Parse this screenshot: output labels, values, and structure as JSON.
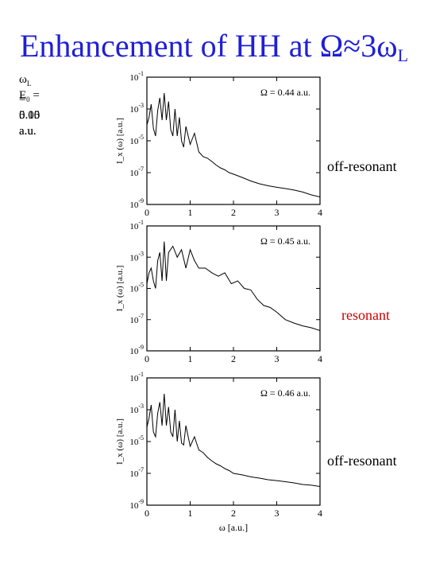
{
  "title": {
    "text": "Enhancement of HH at Ω≈3ω",
    "subscript": "L"
  },
  "params": [
    {
      "symbol": "ω",
      "sub": "L",
      "text": " = 0.15 a.u."
    },
    {
      "symbol": "E",
      "sub": "0",
      "text": " = 5.00 a.u."
    }
  ],
  "labels": {
    "top": "off-resonant",
    "middle": "resonant",
    "bottom": "off-resonant"
  },
  "colors": {
    "title": "#1f1fd6",
    "resonant": "#cc0000",
    "line": "#000000"
  },
  "chart_data": [
    {
      "type": "line",
      "annotation": "Ω = 0.44 a.u.",
      "xlabel": "",
      "ylabel": "I_x (ω) [a.u.]",
      "xlim": [
        0,
        4
      ],
      "ylim": [
        1e-09,
        0.1
      ],
      "yscale": "log",
      "xticks": [
        "0",
        "1",
        "2",
        "3",
        "4"
      ],
      "yticks": [
        "10^-9",
        "10^-7",
        "10^-5",
        "10^-3",
        "10^-1"
      ],
      "series": [
        {
          "name": "",
          "x": [
            0.0,
            0.05,
            0.1,
            0.15,
            0.2,
            0.25,
            0.3,
            0.35,
            0.4,
            0.45,
            0.5,
            0.55,
            0.6,
            0.65,
            0.7,
            0.75,
            0.8,
            0.85,
            0.9,
            1.0,
            1.1,
            1.2,
            1.3,
            1.4,
            1.5,
            1.6,
            1.7,
            1.8,
            1.9,
            2.0,
            2.2,
            2.4,
            2.6,
            2.8,
            3.0,
            3.2,
            3.4,
            3.6,
            3.8,
            4.0
          ],
          "y": [
            0.0001,
            0.0003,
            0.002,
            6e-05,
            2e-05,
            0.0008,
            0.005,
            0.0002,
            0.01,
            0.0002,
            0.003,
            5e-05,
            2e-05,
            0.001,
            2e-05,
            0.0003,
            1e-05,
            4e-06,
            8e-05,
            6e-06,
            3e-05,
            2e-06,
            1e-06,
            8e-07,
            5e-07,
            3e-07,
            2e-07,
            1.5e-07,
            1e-07,
            8e-08,
            5e-08,
            3e-08,
            2e-08,
            1.5e-08,
            1.2e-08,
            1e-08,
            8e-09,
            6e-09,
            4e-09,
            3e-09
          ]
        }
      ]
    },
    {
      "type": "line",
      "annotation": "Ω = 0.45 a.u.",
      "xlabel": "",
      "ylabel": "I_x (ω) [a.u.]",
      "xlim": [
        0,
        4
      ],
      "ylim": [
        1e-09,
        0.1
      ],
      "yscale": "log",
      "xticks": [
        "0",
        "1",
        "2",
        "3",
        "4"
      ],
      "yticks": [
        "10^-9",
        "10^-7",
        "10^-5",
        "10^-3",
        "10^-1"
      ],
      "series": [
        {
          "name": "",
          "x": [
            0.0,
            0.05,
            0.1,
            0.15,
            0.2,
            0.25,
            0.3,
            0.35,
            0.4,
            0.45,
            0.5,
            0.6,
            0.7,
            0.8,
            0.9,
            1.0,
            1.1,
            1.2,
            1.35,
            1.5,
            1.65,
            1.8,
            1.95,
            2.1,
            2.25,
            2.4,
            2.55,
            2.7,
            2.85,
            3.0,
            3.2,
            3.4,
            3.6,
            3.8,
            4.0
          ],
          "y": [
            2e-05,
            0.0001,
            0.0002,
            3e-05,
            1e-05,
            0.0006,
            0.002,
            3e-05,
            0.01,
            3e-05,
            0.002,
            0.005,
            0.001,
            0.003,
            0.0002,
            0.003,
            0.0006,
            0.0002,
            0.0002,
            0.0001,
            6e-05,
            0.0001,
            2e-05,
            3e-05,
            1e-05,
            8e-06,
            2e-06,
            8e-07,
            6e-07,
            3e-07,
            1e-07,
            6e-08,
            4e-08,
            3e-08,
            2e-08
          ]
        }
      ]
    },
    {
      "type": "line",
      "annotation": "Ω = 0.46 a.u.",
      "xlabel": "ω [a.u.]",
      "ylabel": "I_x (ω) [a.u.]",
      "xlim": [
        0,
        4
      ],
      "ylim": [
        1e-09,
        0.1
      ],
      "yscale": "log",
      "xticks": [
        "0",
        "1",
        "2",
        "3",
        "4"
      ],
      "yticks": [
        "10^-9",
        "10^-7",
        "10^-5",
        "10^-3",
        "10^-1"
      ],
      "series": [
        {
          "name": "",
          "x": [
            0.0,
            0.05,
            0.1,
            0.15,
            0.2,
            0.25,
            0.3,
            0.35,
            0.4,
            0.45,
            0.5,
            0.55,
            0.6,
            0.65,
            0.7,
            0.75,
            0.8,
            0.85,
            0.9,
            1.0,
            1.1,
            1.2,
            1.3,
            1.4,
            1.5,
            1.6,
            1.7,
            1.8,
            1.9,
            2.0,
            2.2,
            2.4,
            2.6,
            2.8,
            3.0,
            3.2,
            3.4,
            3.6,
            3.8,
            4.0
          ],
          "y": [
            8e-05,
            0.0003,
            0.002,
            4e-05,
            2e-05,
            0.0006,
            0.003,
            0.0001,
            0.01,
            0.0001,
            0.0015,
            4e-05,
            2e-05,
            0.001,
            1e-05,
            0.0002,
            8e-06,
            6e-06,
            0.0001,
            5e-06,
            2e-05,
            3e-06,
            2e-06,
            1e-06,
            6e-07,
            4e-07,
            3e-07,
            2e-07,
            1.5e-07,
            1e-07,
            8e-08,
            6e-08,
            5e-08,
            4e-08,
            3.5e-08,
            3e-08,
            2.5e-08,
            2e-08,
            1.8e-08,
            1.5e-08
          ]
        }
      ]
    }
  ]
}
